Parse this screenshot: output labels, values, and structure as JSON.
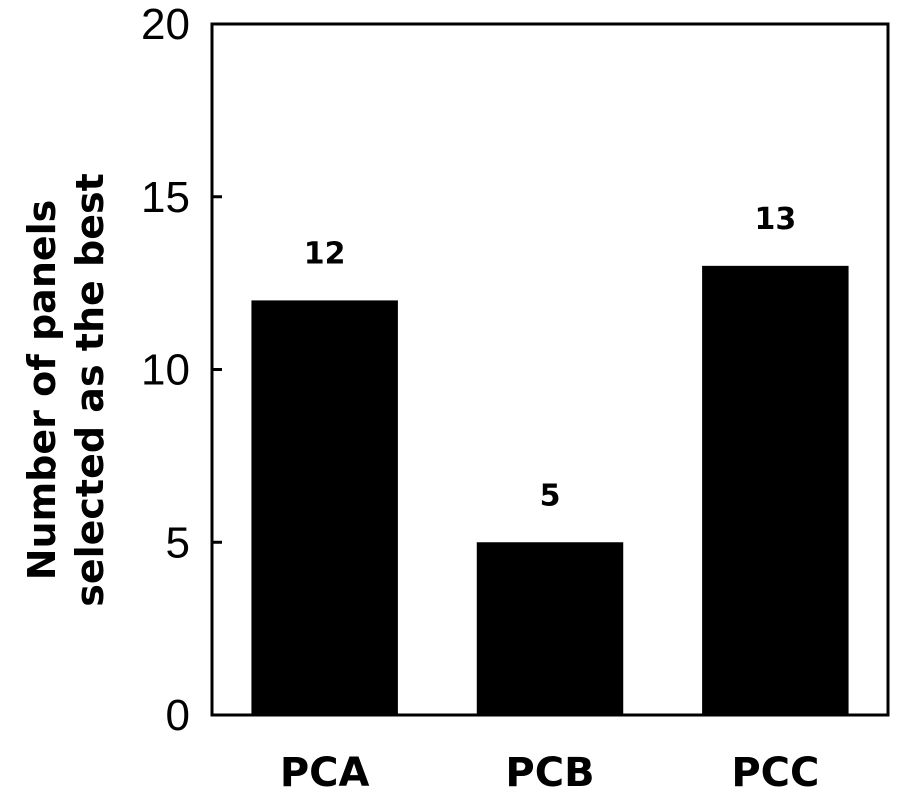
{
  "chart_data": {
    "type": "bar",
    "title": "",
    "categories": [
      "PCA",
      "PCB",
      "PCC"
    ],
    "values": [
      12,
      5,
      13
    ],
    "data_labels": [
      "12",
      "5",
      "13"
    ],
    "xlabel": "",
    "ylabel_lines": [
      "Number of panels",
      "selected as the best"
    ],
    "ylim": [
      0,
      20
    ],
    "yticks": [
      0,
      5,
      10,
      15,
      20
    ],
    "ytick_labels": [
      "0",
      "5",
      "10",
      "15",
      "20"
    ],
    "grid": false,
    "legend": "none",
    "bar_color": "#000000"
  }
}
